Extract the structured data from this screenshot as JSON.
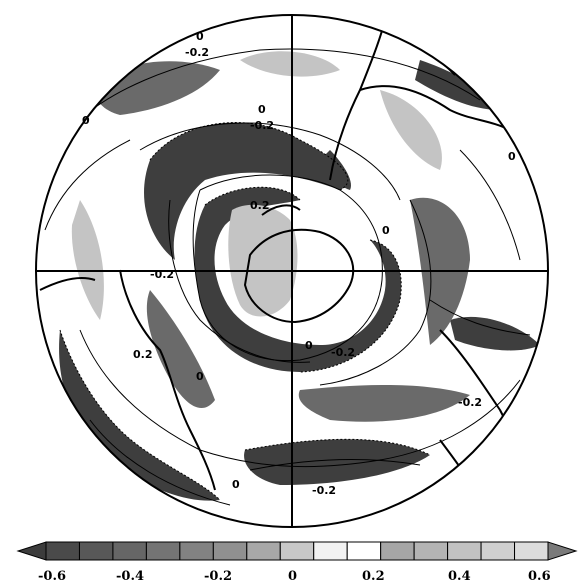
{
  "map": {
    "contour_labels": [
      "0",
      "-0.2",
      "0",
      "-0.2",
      "0",
      "0.2",
      "-0.2",
      "0.2",
      "0",
      "-0.2",
      "0",
      "-0.2",
      "-0.2",
      "0",
      "0",
      "0"
    ],
    "colorbar": {
      "ticks": [
        "-0.6",
        "-0.4",
        "-0.2",
        "0",
        "0.2",
        "0.4",
        "0.6"
      ],
      "shade_colors": [
        "#3c3c3c",
        "#4a4a4a",
        "#585858",
        "#666666",
        "#747474",
        "#828282",
        "#909090",
        "#a8a8a8",
        "#c8c8c8",
        "#f2f2f2",
        "#ffffff",
        "#a6a6a6",
        "#b4b4b4",
        "#c2c2c2",
        "#d0d0d0",
        "#dcdcdc",
        "#7a7a7a"
      ]
    },
    "colors": {
      "negative_dark": "#3a3a3a",
      "negative_mid": "#6e6e6e",
      "positive_light": "#c8c8c8",
      "positive_mid": "#9c9c9c",
      "background": "#ffffff",
      "lines": "#000000"
    }
  }
}
